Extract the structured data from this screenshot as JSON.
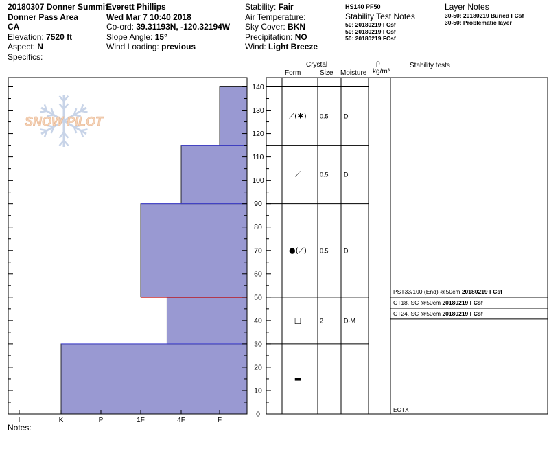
{
  "header": {
    "col1": {
      "title": "20180307 Donner Summit",
      "area": "Donner Pass Area",
      "state": "CA",
      "elevation_label": "Elevation:",
      "elevation_value": "7520 ft",
      "aspect_label": "Aspect:",
      "aspect_value": "N",
      "specifics_label": "Specifics:"
    },
    "col2": {
      "observer": "Everett Phillips",
      "datetime": "Wed Mar 7 10:40 2018",
      "coord_label": "Co-ord:",
      "coord_value": "39.31193N, -120.32194W",
      "slope_label": "Slope Angle:",
      "slope_value": "15°",
      "wind_label": "Wind Loading:",
      "wind_value": "previous"
    },
    "col3": {
      "stability_label": "Stability:",
      "stability_value": "Fair",
      "airtemp_label": "Air Temperature:",
      "sky_label": "Sky Cover:",
      "sky_value": "BKN",
      "precip_label": "Precipitation:",
      "precip_value": "NO",
      "wind_label": "Wind:",
      "wind_value": "Light Breeze"
    },
    "col4": {
      "code": "HS140  PF50",
      "stability_notes_title": "Stability Test Notes",
      "stability_notes": [
        "50: 20180219 FCsf",
        "50: 20180219 FCsf",
        "50: 20180219 FCsf"
      ]
    },
    "col5": {
      "title": "Layer Notes",
      "notes": [
        "30-50: 20180219 Buried FCsf",
        "30-50: Problematic layer"
      ]
    }
  },
  "columns": {
    "crystal": "Crystal",
    "form": "Form",
    "size": "Size",
    "moisture": "Moisture",
    "rho": "ρ",
    "density_unit": "kg/m³",
    "stability_tests": "Stability tests"
  },
  "watermark": "SNOW PILOT",
  "notes_label": "Notes:",
  "chart_data": {
    "type": "bar",
    "orientation": "horizontal-hardness-profile",
    "x_categories": [
      "I",
      "K",
      "P",
      "1F",
      "4F",
      "F"
    ],
    "y_ticks": [
      0,
      10,
      20,
      30,
      40,
      50,
      60,
      70,
      80,
      90,
      100,
      110,
      120,
      130,
      140
    ],
    "ylim": [
      0,
      140
    ],
    "layers": [
      {
        "bottom": 0,
        "top": 30,
        "hardness": "K"
      },
      {
        "bottom": 30,
        "top": 50,
        "hardness": "4F-"
      },
      {
        "bottom": 50,
        "top": 90,
        "hardness": "1F"
      },
      {
        "bottom": 90,
        "top": 115,
        "hardness": "4F"
      },
      {
        "bottom": 115,
        "top": 140,
        "hardness": "F"
      }
    ],
    "hardness_index": {
      "I": 0,
      "K": 1,
      "P": 2,
      "1F": 3,
      "4F-": 3.65,
      "4F": 4,
      "F": 5
    },
    "fill_color": "#9999d2",
    "layer_line_color": "#4040d0",
    "weak_layer_color": "#c00000",
    "weak_layer_depth": 50,
    "crystals": [
      {
        "center": 127.5,
        "form_symbol": "⟋(✱)",
        "size": "0.5",
        "moisture": "D"
      },
      {
        "center": 102.5,
        "form_symbol": "⟋",
        "size": "0.5",
        "moisture": "D"
      },
      {
        "center": 70,
        "form_symbol": "●(⟋)",
        "size": "0.5",
        "moisture": "D"
      },
      {
        "center": 40,
        "form_symbol": "□",
        "size": "2",
        "moisture": "D-M"
      },
      {
        "center": 15,
        "form_symbol": "▬",
        "size": "",
        "moisture": ""
      }
    ],
    "tests": [
      {
        "text": "PST33/100 (End) @50cm ",
        "bold": "20180219 FCsf"
      },
      {
        "text": "CT18, SC @50cm ",
        "bold": "20180219 FCsf"
      },
      {
        "text": "CT24, SC @50cm ",
        "bold": "20180219 FCsf"
      }
    ],
    "ectx": "ECTX"
  }
}
